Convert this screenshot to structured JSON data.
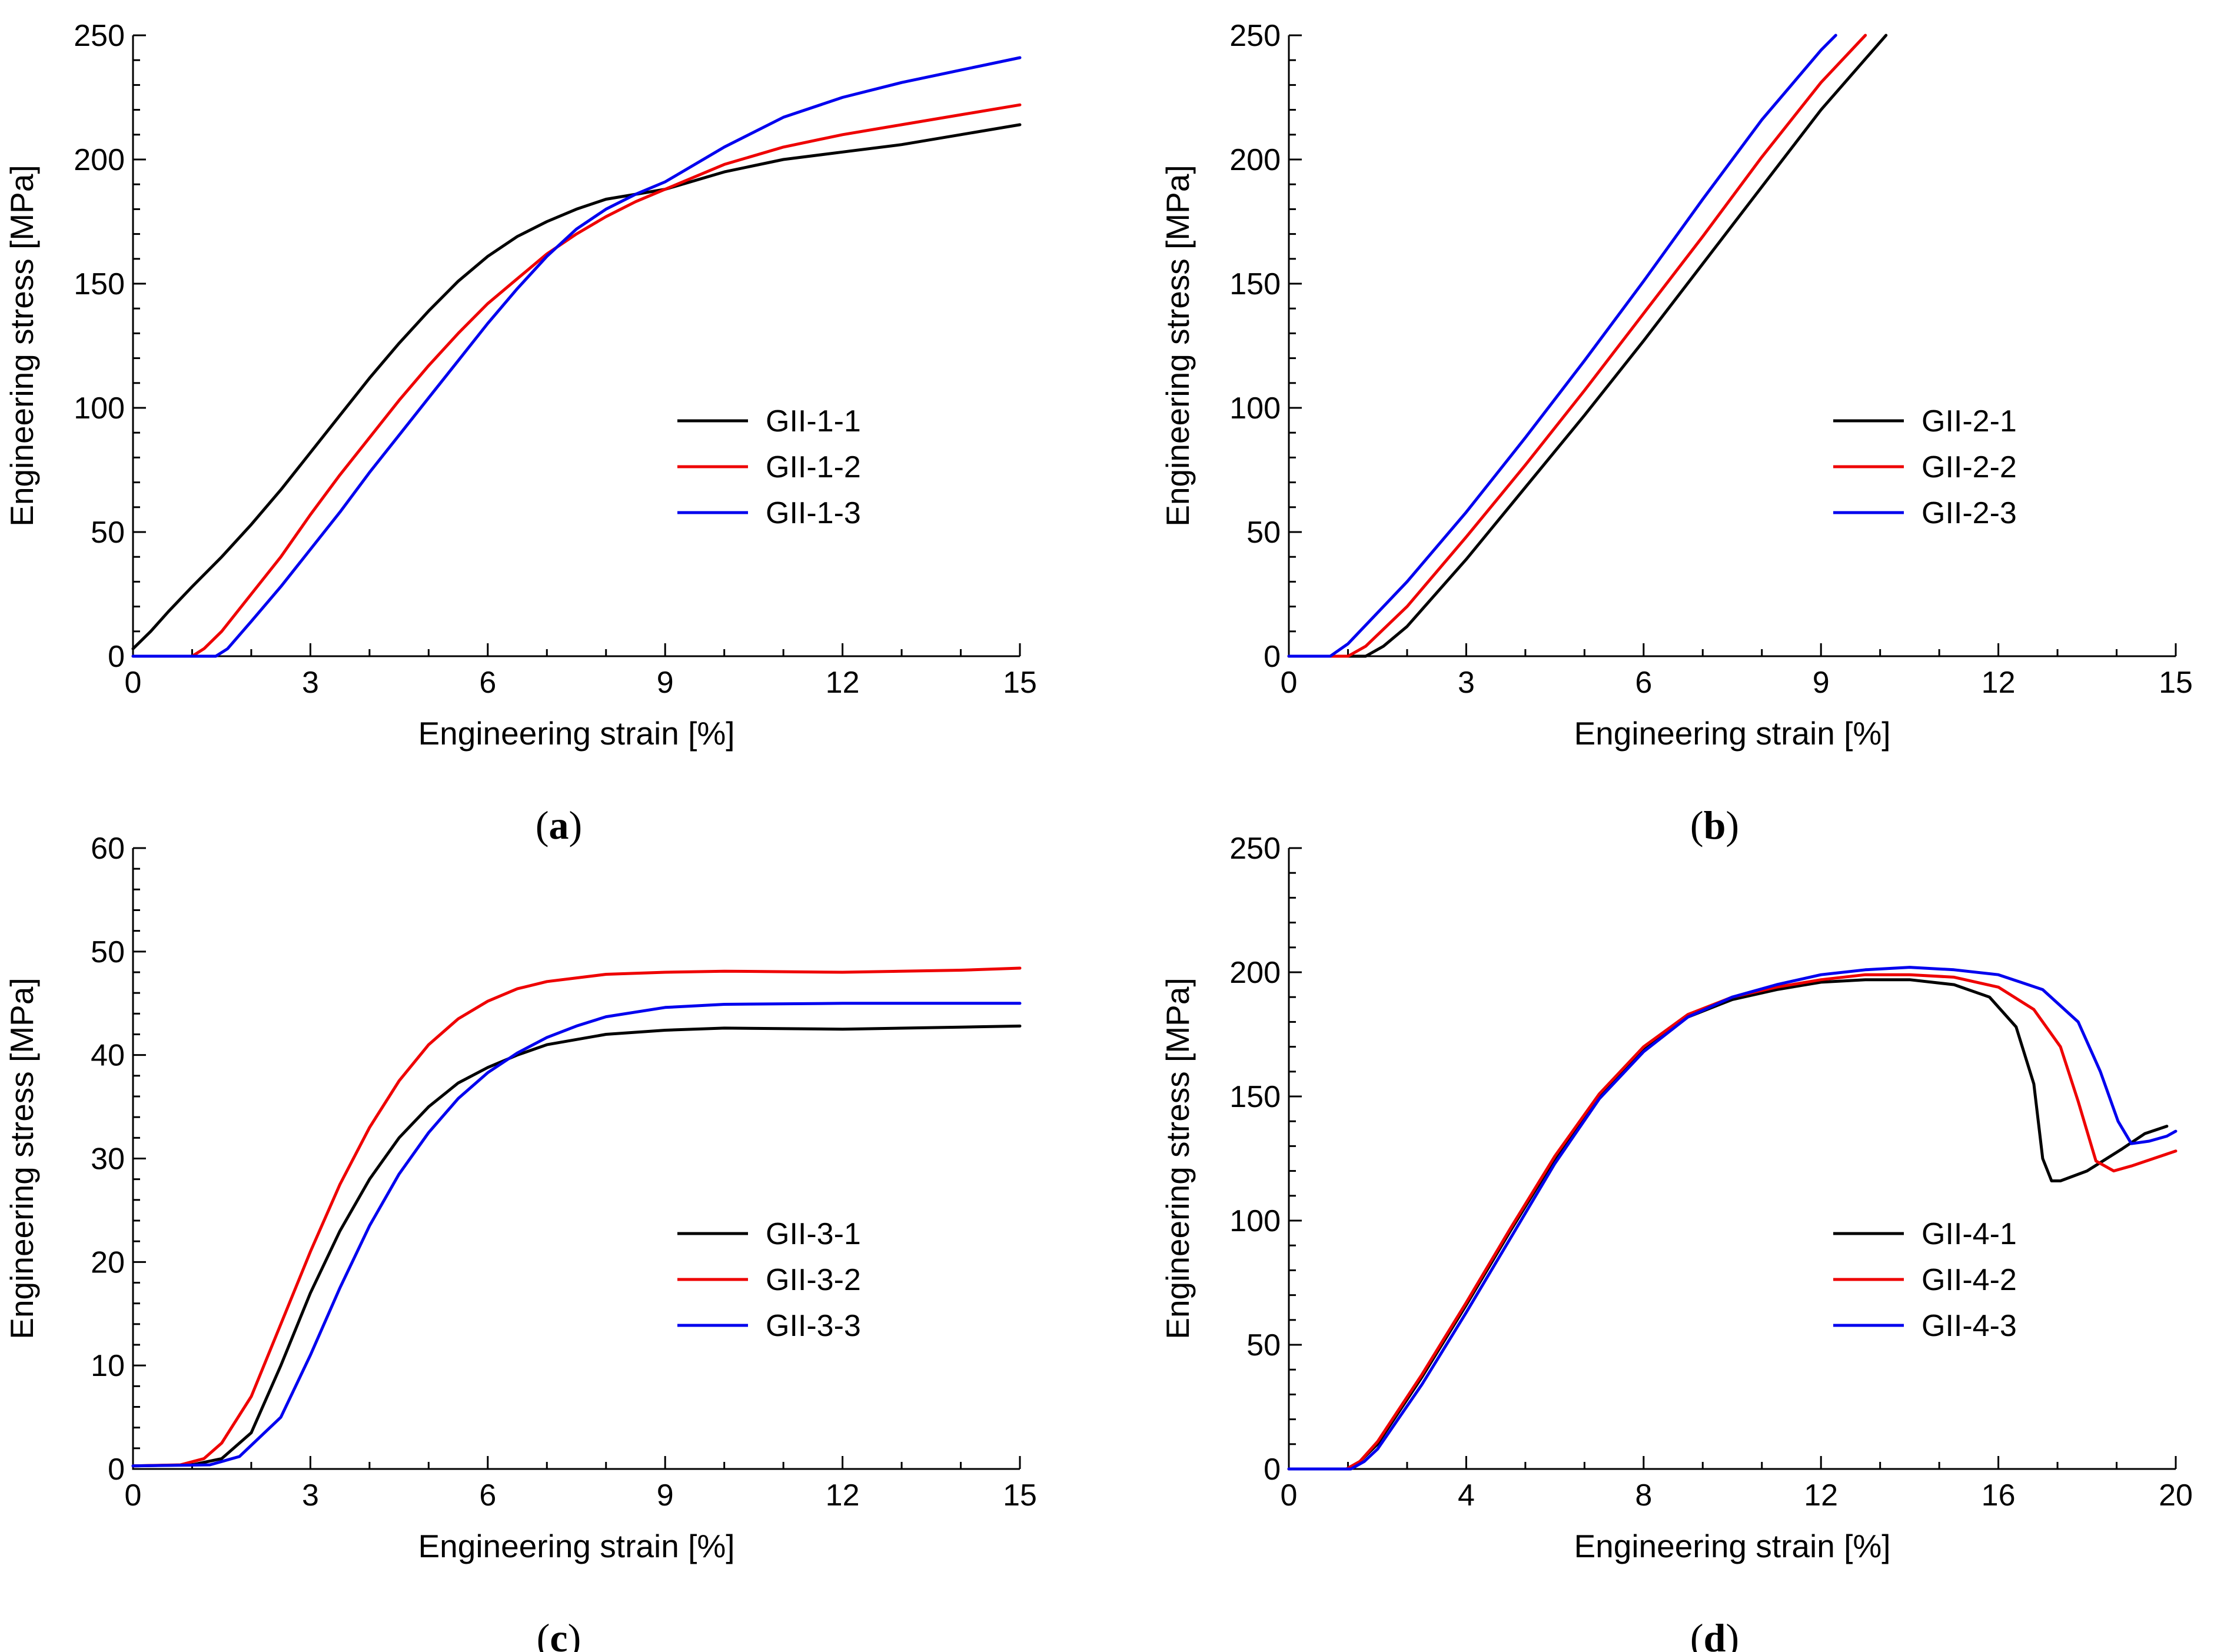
{
  "chart_data": [
    {
      "type": "line",
      "caption": "a",
      "xlabel": "Engineering strain [%]",
      "ylabel": "Engineering stress [MPa]",
      "xlim": [
        0,
        15
      ],
      "ylim": [
        0,
        250
      ],
      "xticks": [
        0,
        3,
        6,
        9,
        12,
        15
      ],
      "yticks": [
        0,
        50,
        100,
        150,
        200,
        250
      ],
      "legend_position": "center-right",
      "series": [
        {
          "name": "GII-1-1",
          "color": "#000000",
          "x": [
            0,
            0.3,
            0.6,
            1,
            1.5,
            2,
            2.5,
            3,
            3.5,
            4,
            4.5,
            5,
            5.5,
            6,
            6.5,
            7,
            7.5,
            8,
            8.5,
            9,
            10,
            11,
            12,
            13,
            14,
            15
          ],
          "y": [
            3,
            10,
            18,
            28,
            40,
            53,
            67,
            82,
            97,
            112,
            126,
            139,
            151,
            161,
            169,
            175,
            180,
            184,
            186,
            188,
            195,
            200,
            203,
            206,
            210,
            214
          ]
        },
        {
          "name": "GII-1-2",
          "color": "#ee0000",
          "x": [
            0,
            1.0,
            1.2,
            1.5,
            2,
            2.5,
            3,
            3.5,
            4,
            4.5,
            5,
            5.5,
            6,
            6.5,
            7,
            7.5,
            8,
            8.5,
            9,
            10,
            11,
            12,
            13,
            14,
            15
          ],
          "y": [
            0,
            0,
            3,
            10,
            25,
            40,
            57,
            73,
            88,
            103,
            117,
            130,
            142,
            152,
            162,
            170,
            177,
            183,
            188,
            198,
            205,
            210,
            214,
            218,
            222
          ]
        },
        {
          "name": "GII-1-3",
          "color": "#0000ee",
          "x": [
            0,
            1.4,
            1.6,
            2,
            2.5,
            3,
            3.5,
            4,
            4.5,
            5,
            5.5,
            6,
            6.5,
            7,
            7.5,
            8,
            8.5,
            9,
            10,
            11,
            12,
            13,
            14,
            15
          ],
          "y": [
            0,
            0,
            3,
            14,
            28,
            43,
            58,
            74,
            89,
            104,
            119,
            134,
            148,
            161,
            172,
            180,
            186,
            191,
            205,
            217,
            225,
            231,
            236,
            241
          ]
        }
      ]
    },
    {
      "type": "line",
      "caption": "b",
      "xlabel": "Engineering strain [%]",
      "ylabel": "Engineering stress [MPa]",
      "xlim": [
        0,
        15
      ],
      "ylim": [
        0,
        250
      ],
      "xticks": [
        0,
        3,
        6,
        9,
        12,
        15
      ],
      "yticks": [
        0,
        50,
        100,
        150,
        200,
        250
      ],
      "legend_position": "center-right",
      "series": [
        {
          "name": "GII-2-1",
          "color": "#000000",
          "x": [
            0,
            1.3,
            1.6,
            2,
            3,
            4,
            5,
            6,
            7,
            8,
            9,
            10.1
          ],
          "y": [
            0,
            0,
            4,
            12,
            39,
            68,
            97,
            127,
            158,
            189,
            220,
            250
          ]
        },
        {
          "name": "GII-2-2",
          "color": "#ee0000",
          "x": [
            0,
            1.0,
            1.3,
            2,
            3,
            4,
            5,
            6,
            7,
            8,
            9,
            9.75
          ],
          "y": [
            0,
            0,
            4,
            20,
            48,
            77,
            107,
            138,
            169,
            201,
            231,
            250
          ]
        },
        {
          "name": "GII-2-3",
          "color": "#0000ee",
          "x": [
            0,
            0.7,
            1.0,
            2,
            3,
            4,
            5,
            6,
            7,
            8,
            9,
            9.25
          ],
          "y": [
            0,
            0,
            5,
            30,
            58,
            88,
            119,
            151,
            184,
            216,
            244,
            250
          ]
        }
      ]
    },
    {
      "type": "line",
      "caption": "c",
      "xlabel": "Engineering strain [%]",
      "ylabel": "Engineering stress [MPa]",
      "xlim": [
        0,
        15
      ],
      "ylim": [
        0,
        60
      ],
      "xticks": [
        0,
        3,
        6,
        9,
        12,
        15
      ],
      "yticks": [
        0,
        10,
        20,
        30,
        40,
        50,
        60
      ],
      "legend_position": "center-right",
      "series": [
        {
          "name": "GII-3-1",
          "color": "#000000",
          "x": [
            0,
            1.0,
            1.5,
            2,
            2.5,
            3,
            3.5,
            4,
            4.5,
            5,
            5.5,
            6,
            6.5,
            7,
            8,
            9,
            10,
            12,
            14,
            15
          ],
          "y": [
            0.3,
            0.4,
            1.0,
            3.5,
            10,
            17,
            23,
            28,
            32,
            35,
            37.3,
            38.8,
            40,
            41,
            42,
            42.4,
            42.6,
            42.5,
            42.7,
            42.8
          ]
        },
        {
          "name": "GII-3-2",
          "color": "#ee0000",
          "x": [
            0,
            0.8,
            1.2,
            1.5,
            2,
            2.5,
            3,
            3.5,
            4,
            4.5,
            5,
            5.5,
            6,
            6.5,
            7,
            8,
            9,
            10,
            12,
            14,
            15
          ],
          "y": [
            0.3,
            0.4,
            1.0,
            2.5,
            7,
            14,
            21,
            27.5,
            33,
            37.5,
            41,
            43.5,
            45.2,
            46.4,
            47.1,
            47.8,
            48.0,
            48.1,
            48.0,
            48.2,
            48.4
          ]
        },
        {
          "name": "GII-3-3",
          "color": "#0000ee",
          "x": [
            0,
            1.3,
            1.8,
            2.5,
            3,
            3.5,
            4,
            4.5,
            5,
            5.5,
            6,
            6.5,
            7,
            7.5,
            8,
            9,
            10,
            12,
            14,
            15
          ],
          "y": [
            0.3,
            0.4,
            1.2,
            5,
            11,
            17.5,
            23.5,
            28.5,
            32.5,
            35.8,
            38.3,
            40.2,
            41.7,
            42.8,
            43.7,
            44.6,
            44.9,
            45.0,
            45.0,
            45.0
          ]
        }
      ]
    },
    {
      "type": "line",
      "caption": "d",
      "xlabel": "Engineering strain [%]",
      "ylabel": "Engineering stress [MPa]",
      "xlim": [
        0,
        20
      ],
      "ylim": [
        0,
        250
      ],
      "xticks": [
        0,
        4,
        8,
        12,
        16,
        20
      ],
      "yticks": [
        0,
        50,
        100,
        150,
        200,
        250
      ],
      "legend_position": "center-right",
      "series": [
        {
          "name": "GII-4-1",
          "color": "#000000",
          "x": [
            0,
            1.3,
            1.6,
            2,
            3,
            4,
            5,
            6,
            7,
            8,
            9,
            10,
            11,
            12,
            13,
            14,
            15,
            15.8,
            16.4,
            16.8,
            17.0,
            17.2,
            17.4,
            18,
            18.8,
            19.3,
            19.8
          ],
          "y": [
            0,
            0,
            3,
            10,
            37,
            66,
            96,
            125,
            150,
            169,
            182,
            189,
            193,
            196,
            197,
            197,
            195,
            190,
            178,
            155,
            125,
            116,
            116,
            120,
            129,
            135,
            138
          ]
        },
        {
          "name": "GII-4-2",
          "color": "#ee0000",
          "x": [
            0,
            1.3,
            1.6,
            2,
            3,
            4,
            5,
            6,
            7,
            8,
            9,
            10,
            11,
            12,
            13,
            14,
            15,
            16,
            16.8,
            17.4,
            17.8,
            18.2,
            18.6,
            19,
            19.5,
            20
          ],
          "y": [
            0,
            0,
            3,
            11,
            38,
            67,
            97,
            126,
            151,
            170,
            183,
            190,
            194,
            197,
            199,
            199,
            198,
            194,
            185,
            170,
            148,
            124,
            120,
            122,
            125,
            128
          ]
        },
        {
          "name": "GII-4-3",
          "color": "#0000ee",
          "x": [
            0,
            1.4,
            1.7,
            2,
            3,
            4,
            5,
            6,
            7,
            8,
            9,
            10,
            11,
            12,
            13,
            14,
            15,
            16,
            17,
            17.8,
            18.3,
            18.7,
            19.0,
            19.4,
            19.8,
            20
          ],
          "y": [
            0,
            0,
            3,
            8,
            34,
            63,
            93,
            123,
            149,
            168,
            182,
            190,
            195,
            199,
            201,
            202,
            201,
            199,
            193,
            180,
            160,
            140,
            131,
            132,
            134,
            136
          ]
        }
      ]
    }
  ]
}
